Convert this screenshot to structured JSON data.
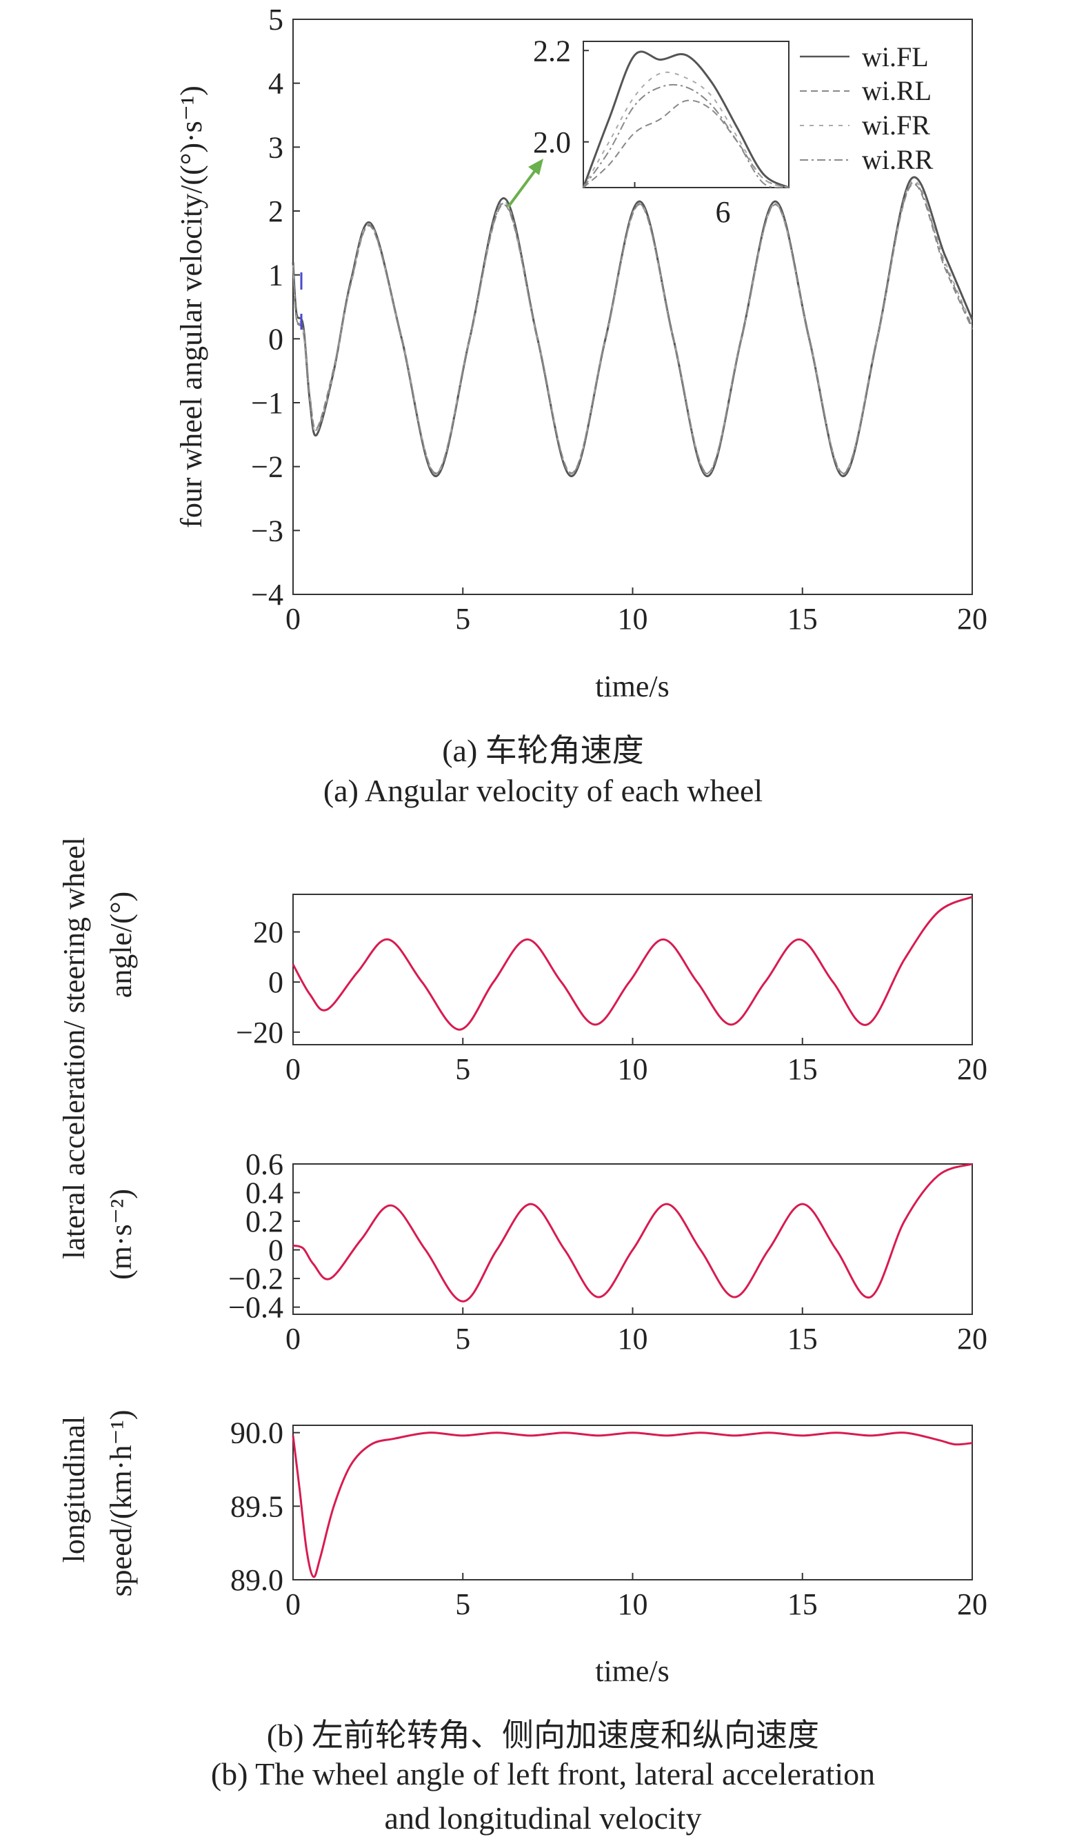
{
  "figure_a": {
    "caption_cn": "(a) 车轮角速度",
    "caption_en": "(a) Angular velocity of each wheel"
  },
  "figure_b": {
    "caption_cn": "(b) 左前轮转角、侧向加速度和纵向速度",
    "caption_en_line1": "(b) The wheel angle of left front, lateral acceleration",
    "caption_en_line2": "and longitudinal velocity",
    "ylabel_top": "lateral acceleration/ steering wheel",
    "ylabel_top2": "angle/(°)",
    "ylabel_mid": "(m·s⁻²)",
    "ylabel_bottom1": "longitudinal",
    "ylabel_bottom2": "speed/(km·h⁻¹)"
  },
  "colors": {
    "wheel_fl": "#555555",
    "wheel_other": "#888888",
    "vehicle": "#d81b50",
    "arrow": "#6ab04c",
    "start_blip": "#4a4ad0"
  },
  "chart_data": [
    {
      "id": "wheel",
      "type": "line",
      "xlabel": "time/s",
      "ylabel": "four wheel angular velocity/((°)·s⁻¹)",
      "xlim": [
        0,
        20
      ],
      "ylim": [
        -4,
        5
      ],
      "xticks": [
        0,
        5,
        10,
        15,
        20
      ],
      "yticks": [
        -4,
        -3,
        -2,
        -1,
        0,
        1,
        2,
        3,
        4,
        5
      ],
      "legend_position": "top-right",
      "series": [
        {
          "name": "wi.FL",
          "style": "solid",
          "x": [
            0,
            0.1,
            0.3,
            0.5,
            0.7,
            1.2,
            1.7,
            2.3,
            3.2,
            4.2,
            5.2,
            6.2,
            7.2,
            8.2,
            9.2,
            10.2,
            11.2,
            12.2,
            13.2,
            14.2,
            15.2,
            16.2,
            17.2,
            18.2,
            19.2,
            20
          ],
          "y": [
            1.2,
            0.4,
            0.2,
            -1.0,
            -1.5,
            -0.5,
            0.9,
            1.8,
            0.0,
            -2.15,
            0.0,
            2.2,
            0.0,
            -2.15,
            0.0,
            2.15,
            0.0,
            -2.15,
            0.0,
            2.15,
            0.0,
            -2.15,
            0.0,
            2.5,
            1.3,
            0.3
          ]
        },
        {
          "name": "wi.RL",
          "style": "dashed",
          "x": [
            0,
            0.1,
            0.3,
            0.5,
            0.7,
            1.2,
            1.7,
            2.3,
            3.2,
            4.2,
            5.2,
            6.2,
            7.2,
            8.2,
            9.2,
            10.2,
            11.2,
            12.2,
            13.2,
            14.2,
            15.2,
            16.2,
            17.2,
            18.2,
            19.2,
            20
          ],
          "y": [
            1.1,
            0.3,
            0.1,
            -0.9,
            -1.4,
            -0.45,
            0.85,
            1.75,
            0.0,
            -2.1,
            0.0,
            2.1,
            0.0,
            -2.1,
            0.0,
            2.1,
            0.0,
            -2.1,
            0.0,
            2.1,
            0.0,
            -2.1,
            0.0,
            2.4,
            1.1,
            0.15
          ]
        },
        {
          "name": "wi.FR",
          "style": "dashed-light",
          "x": [
            0,
            0.1,
            0.3,
            0.5,
            0.7,
            1.2,
            1.7,
            2.3,
            3.2,
            4.2,
            5.2,
            6.2,
            7.2,
            8.2,
            9.2,
            10.2,
            11.2,
            12.2,
            13.2,
            14.2,
            15.2,
            16.2,
            17.2,
            18.2,
            19.2,
            20
          ],
          "y": [
            1.15,
            0.35,
            0.15,
            -0.95,
            -1.45,
            -0.5,
            0.88,
            1.78,
            0.0,
            -2.12,
            0.0,
            2.15,
            0.0,
            -2.12,
            0.0,
            2.12,
            0.0,
            -2.12,
            0.0,
            2.12,
            0.0,
            -2.12,
            0.0,
            2.45,
            1.2,
            0.2
          ]
        },
        {
          "name": "wi.RR",
          "style": "dashdot",
          "x": [
            0,
            0.1,
            0.3,
            0.5,
            0.7,
            1.2,
            1.7,
            2.3,
            3.2,
            4.2,
            5.2,
            6.2,
            7.2,
            8.2,
            9.2,
            10.2,
            11.2,
            12.2,
            13.2,
            14.2,
            15.2,
            16.2,
            17.2,
            18.2,
            19.2,
            20
          ],
          "y": [
            1.12,
            0.32,
            0.12,
            -0.92,
            -1.42,
            -0.48,
            0.86,
            1.76,
            0.0,
            -2.11,
            0.0,
            2.12,
            0.0,
            -2.11,
            0.0,
            2.11,
            0.0,
            -2.11,
            0.0,
            2.11,
            0.0,
            -2.11,
            0.0,
            2.42,
            1.15,
            0.18
          ]
        }
      ],
      "inset": {
        "xlim": [
          5.8,
          6.6
        ],
        "ylim": [
          1.9,
          2.22
        ],
        "yticks": [
          2.0,
          2.2
        ],
        "xticks": [
          6
        ],
        "series": [
          {
            "name": "wi.FL",
            "x": [
              5.8,
              5.9,
              6.0,
              6.1,
              6.2,
              6.3,
              6.4,
              6.5,
              6.6
            ],
            "y": [
              1.9,
              2.05,
              2.19,
              2.18,
              2.19,
              2.13,
              2.03,
              1.93,
              1.88
            ]
          },
          {
            "name": "wi.RL",
            "x": [
              5.8,
              5.9,
              6.0,
              6.1,
              6.2,
              6.3,
              6.4,
              6.5,
              6.6
            ],
            "y": [
              1.85,
              1.95,
              2.02,
              2.05,
              2.09,
              2.07,
              2.0,
              1.92,
              1.86
            ]
          },
          {
            "name": "wi.FR",
            "x": [
              5.8,
              5.9,
              6.0,
              6.1,
              6.2,
              6.3,
              6.4,
              6.5,
              6.6
            ],
            "y": [
              1.88,
              2.0,
              2.1,
              2.15,
              2.14,
              2.1,
              2.01,
              1.92,
              1.87
            ]
          },
          {
            "name": "wi.RR",
            "x": [
              5.8,
              5.9,
              6.0,
              6.1,
              6.2,
              6.3,
              6.4,
              6.5,
              6.6
            ],
            "y": [
              1.87,
              1.98,
              2.08,
              2.12,
              2.12,
              2.08,
              2.0,
              1.91,
              1.86
            ]
          }
        ]
      }
    },
    {
      "id": "steer",
      "type": "line",
      "xlim": [
        0,
        20
      ],
      "ylim": [
        -25,
        35
      ],
      "xticks": [
        0,
        5,
        10,
        15,
        20
      ],
      "yticks": [
        -20,
        0,
        20
      ],
      "series": [
        {
          "x": [
            0,
            0.5,
            1.0,
            1.9,
            2.8,
            3.8,
            4.9,
            5.9,
            6.9,
            7.9,
            8.9,
            9.9,
            10.9,
            11.9,
            12.9,
            13.9,
            14.9,
            15.9,
            16.9,
            18.0,
            19.0,
            20
          ],
          "y": [
            7,
            -5,
            -11,
            4,
            17,
            0,
            -19,
            0,
            17,
            0,
            -17,
            0,
            17,
            0,
            -17,
            0,
            17,
            0,
            -17,
            9,
            28,
            34
          ]
        }
      ]
    },
    {
      "id": "lat",
      "type": "line",
      "xlim": [
        0,
        20
      ],
      "ylim": [
        -0.45,
        0.6
      ],
      "xticks": [
        0,
        5,
        10,
        15,
        20
      ],
      "yticks": [
        -0.4,
        -0.2,
        0,
        0.2,
        0.4,
        0.6
      ],
      "series": [
        {
          "x": [
            0,
            0.3,
            0.6,
            1.1,
            2.0,
            2.9,
            3.9,
            5.0,
            6.0,
            7.0,
            8.0,
            9.0,
            10.0,
            11.0,
            12.0,
            13.0,
            14.0,
            15.0,
            16.0,
            17.0,
            18.0,
            19.0,
            20
          ],
          "y": [
            0.03,
            0.01,
            -0.1,
            -0.2,
            0.07,
            0.31,
            0.0,
            -0.36,
            0.0,
            0.32,
            0.0,
            -0.33,
            0.0,
            0.32,
            0.0,
            -0.33,
            0.0,
            0.32,
            0.0,
            -0.33,
            0.2,
            0.52,
            0.6
          ]
        }
      ]
    },
    {
      "id": "speed",
      "type": "line",
      "xlabel": "time/s",
      "xlim": [
        0,
        20
      ],
      "ylim": [
        89.0,
        90.05
      ],
      "xticks": [
        0,
        5,
        10,
        15,
        20
      ],
      "yticks": [
        89.0,
        89.5,
        90.0
      ],
      "series": [
        {
          "x": [
            0,
            0.2,
            0.4,
            0.6,
            0.8,
            1.2,
            1.7,
            2.3,
            3.0,
            4.0,
            5.0,
            6.0,
            7.0,
            8.0,
            9.0,
            10.0,
            11.0,
            12.0,
            13.0,
            14.0,
            15.0,
            16.0,
            17.0,
            18.0,
            19.0,
            19.5,
            20
          ],
          "y": [
            89.98,
            89.6,
            89.2,
            89.02,
            89.15,
            89.5,
            89.78,
            89.92,
            89.96,
            90.0,
            89.98,
            90.0,
            89.98,
            90.0,
            89.98,
            90.0,
            89.98,
            90.0,
            89.98,
            90.0,
            89.98,
            90.0,
            89.98,
            90.0,
            89.95,
            89.92,
            89.93
          ]
        }
      ]
    }
  ]
}
